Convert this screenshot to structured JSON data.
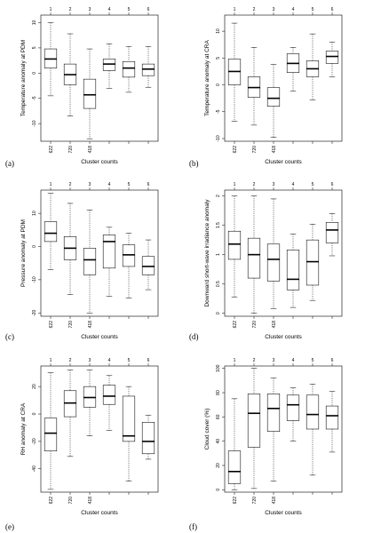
{
  "chart_data": [
    {
      "type": "box",
      "panel_label": "(a)",
      "ylabel": "Temperature anomaly at PDM",
      "xlabel": "Cluster counts",
      "top_ticks": [
        "1",
        "2",
        "3",
        "4",
        "5",
        "6"
      ],
      "count_labels": [
        "622",
        "720",
        "418",
        "",
        "",
        ""
      ],
      "ylim": [
        -13.5,
        11.5
      ],
      "yticks": [
        -10,
        -5,
        0,
        5,
        10
      ],
      "boxes": [
        {
          "whisker_low": -4.5,
          "q1": 1,
          "median": 2.8,
          "q3": 4.8,
          "whisker_high": 10
        },
        {
          "whisker_low": -8.5,
          "q1": -2.3,
          "median": -0.3,
          "q3": 1.8,
          "whisker_high": 7.8
        },
        {
          "whisker_low": -13,
          "q1": -7,
          "median": -4.3,
          "q3": -1.2,
          "whisker_high": 4.8
        },
        {
          "whisker_low": -3,
          "q1": 0.5,
          "median": 1.8,
          "q3": 2.8,
          "whisker_high": 5.8
        },
        {
          "whisker_low": -3.8,
          "q1": -0.8,
          "median": 1,
          "q3": 2.3,
          "whisker_high": 5.3
        },
        {
          "whisker_low": -2.8,
          "q1": -0.5,
          "median": 0.8,
          "q3": 1.8,
          "whisker_high": 5.3
        }
      ]
    },
    {
      "type": "box",
      "panel_label": "(b)",
      "ylabel": "Temperature anomaly at CRA",
      "xlabel": "Cluster counts",
      "top_ticks": [
        "1",
        "2",
        "3",
        "4",
        "5",
        "6"
      ],
      "count_labels": [
        "622",
        "720",
        "418",
        "",
        "",
        ""
      ],
      "ylim": [
        -10.5,
        13
      ],
      "yticks": [
        -10,
        -5,
        0,
        5,
        10
      ],
      "boxes": [
        {
          "whisker_low": -6.8,
          "q1": 0,
          "median": 2.5,
          "q3": 4.8,
          "whisker_high": 11.5
        },
        {
          "whisker_low": -7.5,
          "q1": -2.3,
          "median": -0.5,
          "q3": 1.5,
          "whisker_high": 7
        },
        {
          "whisker_low": -9.8,
          "q1": -4,
          "median": -2.5,
          "q3": -0.5,
          "whisker_high": 3.8
        },
        {
          "whisker_low": -1.2,
          "q1": 2.3,
          "median": 4,
          "q3": 5.8,
          "whisker_high": 7
        },
        {
          "whisker_low": -2.8,
          "q1": 1.5,
          "median": 3,
          "q3": 4.5,
          "whisker_high": 9.5
        },
        {
          "whisker_low": 1.5,
          "q1": 4,
          "median": 5.3,
          "q3": 6.3,
          "whisker_high": 8
        }
      ]
    },
    {
      "type": "box",
      "panel_label": "(c)",
      "ylabel": "Pressure anomaly at PDM",
      "xlabel": "Cluster counts",
      "top_ticks": [
        "1",
        "2",
        "3",
        "4",
        "5",
        "6"
      ],
      "count_labels": [
        "622",
        "720",
        "418",
        "",
        "",
        ""
      ],
      "ylim": [
        -21,
        17
      ],
      "yticks": [
        -20,
        -10,
        0,
        10
      ],
      "boxes": [
        {
          "whisker_low": -7,
          "q1": 1.5,
          "median": 4,
          "q3": 7.5,
          "whisker_high": 16
        },
        {
          "whisker_low": -14.5,
          "q1": -4,
          "median": -0.5,
          "q3": 3,
          "whisker_high": 13
        },
        {
          "whisker_low": -20,
          "q1": -8.5,
          "median": -4,
          "q3": -0.5,
          "whisker_high": 11
        },
        {
          "whisker_low": -15,
          "q1": -6.5,
          "median": 1.5,
          "q3": 3.5,
          "whisker_high": 5.8
        },
        {
          "whisker_low": -15.5,
          "q1": -6,
          "median": -2.5,
          "q3": 0.5,
          "whisker_high": 4
        },
        {
          "whisker_low": -13,
          "q1": -8.5,
          "median": -6,
          "q3": -3,
          "whisker_high": 2
        }
      ]
    },
    {
      "type": "box",
      "panel_label": "(d)",
      "ylabel": "Downward short-wave irradiance anomaly",
      "xlabel": "Cluster counts",
      "top_ticks": [
        "1",
        "2",
        "3",
        "4",
        "5",
        "6"
      ],
      "count_labels": [
        "622",
        "720",
        "418",
        "",
        "",
        ""
      ],
      "ylim": [
        -0.05,
        2.1
      ],
      "yticks": [
        0.0,
        0.5,
        1.0,
        1.5,
        2.0
      ],
      "boxes": [
        {
          "whisker_low": 0.28,
          "q1": 0.92,
          "median": 1.18,
          "q3": 1.4,
          "whisker_high": 2.0
        },
        {
          "whisker_low": 0.0,
          "q1": 0.6,
          "median": 1.0,
          "q3": 1.28,
          "whisker_high": 2.0
        },
        {
          "whisker_low": 0.08,
          "q1": 0.55,
          "median": 0.92,
          "q3": 1.18,
          "whisker_high": 1.95
        },
        {
          "whisker_low": 0.1,
          "q1": 0.4,
          "median": 0.58,
          "q3": 1.08,
          "whisker_high": 1.35
        },
        {
          "whisker_low": 0.22,
          "q1": 0.48,
          "median": 0.88,
          "q3": 1.25,
          "whisker_high": 1.52
        },
        {
          "whisker_low": 0.98,
          "q1": 1.2,
          "median": 1.42,
          "q3": 1.55,
          "whisker_high": 1.7
        }
      ]
    },
    {
      "type": "box",
      "panel_label": "(e)",
      "ylabel": "RH anomaly at CRA",
      "xlabel": "Cluster counts",
      "top_ticks": [
        "1",
        "2",
        "3",
        "4",
        "5",
        "6"
      ],
      "count_labels": [
        "622",
        "720",
        "418",
        "",
        "",
        ""
      ],
      "ylim": [
        -57,
        35
      ],
      "yticks": [
        -40,
        -20,
        0,
        20
      ],
      "boxes": [
        {
          "whisker_low": -55,
          "q1": -27,
          "median": -14,
          "q3": -3,
          "whisker_high": 30
        },
        {
          "whisker_low": -31,
          "q1": -2,
          "median": 8,
          "q3": 17,
          "whisker_high": 32
        },
        {
          "whisker_low": -16,
          "q1": 5,
          "median": 12,
          "q3": 20,
          "whisker_high": 32
        },
        {
          "whisker_low": -12,
          "q1": 7,
          "median": 13,
          "q3": 21,
          "whisker_high": 28
        },
        {
          "whisker_low": -49,
          "q1": -20,
          "median": -16,
          "q3": 13,
          "whisker_high": 20
        },
        {
          "whisker_low": -33,
          "q1": -29,
          "median": -20,
          "q3": -6,
          "whisker_high": -1
        }
      ]
    },
    {
      "type": "box",
      "panel_label": "(f)",
      "ylabel": "Cloud cover (%)",
      "xlabel": "Cluster counts",
      "top_ticks": [
        "1",
        "2",
        "3",
        "4",
        "5",
        "6"
      ],
      "count_labels": [
        "622",
        "720",
        "418",
        "",
        "",
        ""
      ],
      "ylim": [
        -2,
        102
      ],
      "yticks": [
        0,
        20,
        40,
        60,
        80,
        100
      ],
      "boxes": [
        {
          "whisker_low": 0,
          "q1": 5,
          "median": 15,
          "q3": 32,
          "whisker_high": 75
        },
        {
          "whisker_low": 1,
          "q1": 35,
          "median": 63,
          "q3": 79,
          "whisker_high": 100
        },
        {
          "whisker_low": 7,
          "q1": 48,
          "median": 67,
          "q3": 79,
          "whisker_high": 92
        },
        {
          "whisker_low": 40,
          "q1": 57,
          "median": 70,
          "q3": 78,
          "whisker_high": 84
        },
        {
          "whisker_low": 12,
          "q1": 50,
          "median": 62,
          "q3": 78,
          "whisker_high": 87
        },
        {
          "whisker_low": 31,
          "q1": 50,
          "median": 61,
          "q3": 69,
          "whisker_high": 81
        }
      ]
    }
  ]
}
